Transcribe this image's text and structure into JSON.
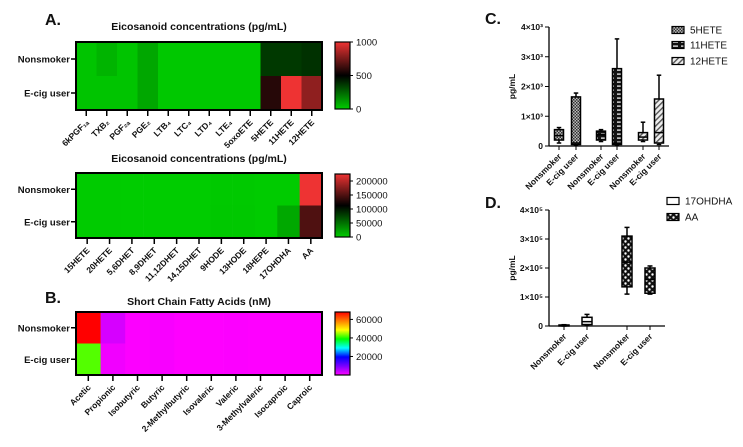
{
  "panels": {
    "A": "A.",
    "B": "B.",
    "C": "C.",
    "D": "D."
  },
  "chart_data": [
    {
      "type": "heatmap",
      "title": "Eicosanoid concentrations (pg/mL)",
      "rows": [
        "Nonsmoker",
        "E-cig user"
      ],
      "columns": [
        "6kPGF₁ₐ",
        "TXB₂",
        "PGF₂ₐ",
        "PGE₂",
        "LTB₄",
        "LTC₄",
        "LTD₄",
        "LTE₄",
        "5oxoETE",
        "5HETE",
        "11HETE",
        "12HETE"
      ],
      "values": [
        [
          20,
          60,
          20,
          90,
          10,
          10,
          10,
          10,
          10,
          360,
          360,
          380
        ],
        [
          20,
          20,
          20,
          90,
          10,
          10,
          10,
          10,
          10,
          580,
          1000,
          800
        ]
      ],
      "range": [
        0,
        1000
      ],
      "colormap": [
        "#00cc00",
        "#000000",
        "#ee3333"
      ],
      "colorbar_ticks": [
        0,
        500,
        1000
      ],
      "colorbar_labels": [
        "0",
        "500",
        "1000"
      ]
    },
    {
      "type": "heatmap",
      "title": "Eicosanoid concentrations (pg/mL)",
      "rows": [
        "Nonsmoker",
        "E-cig user"
      ],
      "columns": [
        "15HETE",
        "20HETE",
        "5,6DHET",
        "8,9DHET",
        "11,12DHET",
        "14,15DHET",
        "9HODE",
        "13HODE",
        "18HEPE",
        "17OHDHA",
        "AA"
      ],
      "values": [
        [
          500,
          300,
          100,
          100,
          100,
          100,
          1500,
          1500,
          500,
          500,
          225000
        ],
        [
          500,
          300,
          100,
          100,
          100,
          100,
          2000,
          2000,
          500,
          20000,
          150000
        ]
      ],
      "range": [
        0,
        225000
      ],
      "colormap": [
        "#00cc00",
        "#000000",
        "#ee3333"
      ],
      "colorbar_ticks": [
        0,
        50000,
        100000,
        150000,
        200000
      ],
      "colorbar_labels": [
        "0",
        "50000",
        "100000",
        "150000",
        "200000"
      ]
    },
    {
      "type": "heatmap",
      "title": "Short Chain Fatty Acids (nM)",
      "rows": [
        "Nonsmoker",
        "E-cig user"
      ],
      "columns": [
        "Acetic",
        "Propionic",
        "Isobutyric",
        "Butyric",
        "2-Methylbutyric",
        "Isovaleric",
        "Valeric",
        "3-Methylvaleric",
        "Isocaproic",
        "Caproic"
      ],
      "values": [
        [
          68000,
          3000,
          200,
          500,
          100,
          100,
          200,
          50,
          50,
          100
        ],
        [
          42000,
          1000,
          200,
          500,
          100,
          100,
          200,
          50,
          50,
          100
        ]
      ],
      "range": [
        0,
        68000
      ],
      "colormap": [
        "#ff00ff",
        "#7a00ff",
        "#0000ff",
        "#00ffff",
        "#00ff00",
        "#ffff00",
        "#ff8000",
        "#ff0000"
      ],
      "colorbar_ticks": [
        20000,
        40000,
        60000
      ],
      "colorbar_labels": [
        "20000",
        "40000",
        "60000"
      ]
    },
    {
      "type": "box",
      "ylabel": "pg/mL",
      "ylim": [
        0,
        4000
      ],
      "yticks": [
        0,
        1000,
        2000,
        3000,
        4000
      ],
      "ytick_labels": [
        "0",
        "1×10³",
        "2×10³",
        "3×10³",
        "4×10³"
      ],
      "series": [
        {
          "name": "5HETE",
          "pattern": "check",
          "boxes": [
            {
              "label": "Nonsmoker",
              "min": 100,
              "q1": 200,
              "median": 350,
              "q3": 550,
              "max": 620
            },
            {
              "label": "E-cig user",
              "min": 30,
              "q1": 50,
              "median": 100,
              "q3": 1650,
              "max": 1780
            }
          ]
        },
        {
          "name": "11HETE",
          "pattern": "brick",
          "boxes": [
            {
              "label": "Nonsmoker",
              "min": 150,
              "q1": 200,
              "median": 380,
              "q3": 500,
              "max": 550
            },
            {
              "label": "E-cig user",
              "min": 30,
              "q1": 50,
              "median": 100,
              "q3": 2600,
              "max": 3600
            }
          ]
        },
        {
          "name": "12HETE",
          "pattern": "diag",
          "boxes": [
            {
              "label": "Nonsmoker",
              "min": 150,
              "q1": 200,
              "median": 300,
              "q3": 450,
              "max": 800
            },
            {
              "label": "E-cig user",
              "min": 50,
              "q1": 100,
              "median": 450,
              "q3": 1580,
              "max": 2380
            }
          ]
        }
      ]
    },
    {
      "type": "box",
      "ylabel": "pg/mL",
      "ylim": [
        0,
        400000
      ],
      "yticks": [
        0,
        100000,
        200000,
        300000,
        400000
      ],
      "ytick_labels": [
        "0",
        "1×10⁵",
        "2×10⁵",
        "3×10⁵",
        "4×10⁵"
      ],
      "series": [
        {
          "name": "17OHDHA",
          "pattern": "white",
          "boxes": [
            {
              "label": "Nonsmoker",
              "min": 0,
              "q1": 1000,
              "median": 2000,
              "q3": 3500,
              "max": 4500
            },
            {
              "label": "E-cig user",
              "min": 1000,
              "q1": 5000,
              "median": 15000,
              "q3": 30000,
              "max": 40000
            }
          ]
        },
        {
          "name": "AA",
          "pattern": "dots",
          "boxes": [
            {
              "label": "Nonsmoker",
              "min": 110000,
              "q1": 135000,
              "median": 220000,
              "q3": 310000,
              "max": 340000
            },
            {
              "label": "E-cig user",
              "min": 110000,
              "q1": 113000,
              "median": 160000,
              "q3": 200000,
              "max": 207000
            }
          ]
        }
      ]
    }
  ]
}
